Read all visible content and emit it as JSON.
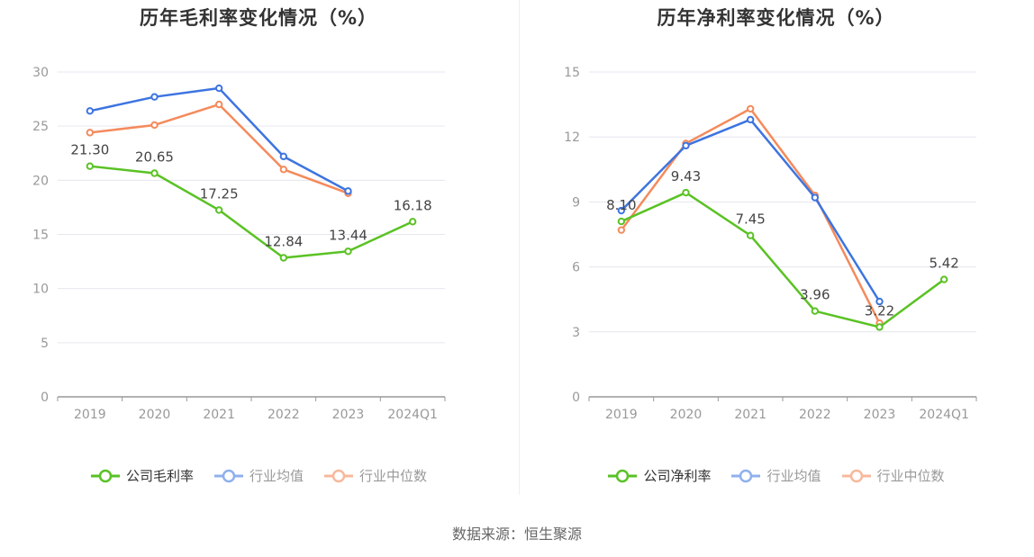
{
  "source_text": "数据来源：恒生聚源",
  "colors": {
    "company": "#5ac224",
    "avg": "#3d74e0",
    "median": "#f58a5b",
    "grid": "#e6e6f0",
    "axis": "#999999"
  },
  "chart_data": [
    {
      "type": "line",
      "title": "历年毛利率变化情况（%）",
      "categories": [
        "2019",
        "2020",
        "2021",
        "2022",
        "2023",
        "2024Q1"
      ],
      "ylim": [
        0,
        30
      ],
      "yticks": [
        0,
        5,
        10,
        15,
        20,
        25,
        30
      ],
      "grid": true,
      "legend_position": "bottom",
      "series": [
        {
          "name": "公司毛利率",
          "values": [
            21.3,
            20.65,
            17.25,
            12.84,
            13.44,
            16.18
          ],
          "labels": [
            "21.30",
            "20.65",
            "17.25",
            "12.84",
            "13.44",
            "16.18"
          ]
        },
        {
          "name": "行业均值",
          "values": [
            26.4,
            27.7,
            28.5,
            22.2,
            19.0,
            null
          ]
        },
        {
          "name": "行业中位数",
          "values": [
            24.4,
            25.1,
            27.0,
            21.0,
            18.8,
            null
          ]
        }
      ]
    },
    {
      "type": "line",
      "title": "历年净利率变化情况（%）",
      "categories": [
        "2019",
        "2020",
        "2021",
        "2022",
        "2023",
        "2024Q1"
      ],
      "ylim": [
        0,
        15
      ],
      "yticks": [
        0,
        3,
        6,
        9,
        12,
        15
      ],
      "grid": true,
      "legend_position": "bottom",
      "series": [
        {
          "name": "公司净利率",
          "values": [
            8.1,
            9.43,
            7.45,
            3.96,
            3.22,
            5.42
          ],
          "labels": [
            "8.10",
            "9.43",
            "7.45",
            "3.96",
            "3.22",
            "5.42"
          ]
        },
        {
          "name": "行业均值",
          "values": [
            8.6,
            11.6,
            12.8,
            9.2,
            4.4,
            null
          ]
        },
        {
          "name": "行业中位数",
          "values": [
            7.7,
            11.7,
            13.3,
            9.3,
            3.4,
            null
          ]
        }
      ]
    }
  ]
}
